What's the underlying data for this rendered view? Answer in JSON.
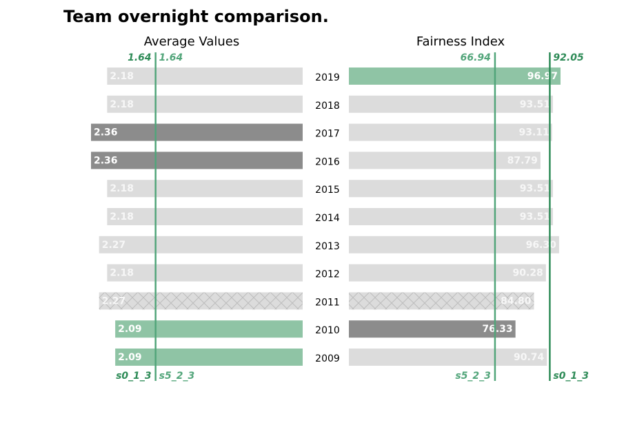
{
  "chart_data": {
    "title": "Team overnight comparison.",
    "type": "bar",
    "categories": [
      "2019",
      "2018",
      "2017",
      "2016",
      "2015",
      "2014",
      "2013",
      "2012",
      "2011",
      "2010",
      "2009"
    ],
    "panels": [
      {
        "title": "Average Values",
        "orientation": "leftward",
        "xlim": [
          0,
          2.36
        ],
        "values": [
          2.18,
          2.18,
          2.36,
          2.36,
          2.18,
          2.18,
          2.27,
          2.18,
          2.27,
          2.09,
          2.09
        ],
        "labels": [
          "2.18",
          "2.18",
          "2.36",
          "2.36",
          "2.18",
          "2.18",
          "2.27",
          "2.18",
          "2.27",
          "2.09",
          "2.09"
        ],
        "reference_lines": [
          {
            "name": "s0_1_3",
            "value": 1.64,
            "value_label": "1.64",
            "color": "#2e8b57"
          },
          {
            "name": "s5_2_3",
            "value": 1.64,
            "value_label": "1.64",
            "color": "#52a57a"
          }
        ]
      },
      {
        "title": "Fairness Index",
        "orientation": "rightward",
        "xlim": [
          0,
          100
        ],
        "values": [
          96.97,
          93.51,
          93.11,
          87.79,
          93.51,
          93.51,
          96.3,
          90.28,
          84.8,
          76.33,
          90.74
        ],
        "labels": [
          "96.97",
          "93.51",
          "93.11",
          "87.79",
          "93.51",
          "93.51",
          "96.30",
          "90.28",
          "84.80",
          "76.33",
          "90.74"
        ],
        "reference_lines": [
          {
            "name": "s5_2_3",
            "value": 66.94,
            "value_label": "66.94",
            "color": "#52a57a"
          },
          {
            "name": "s0_1_3",
            "value": 92.05,
            "value_label": "92.05",
            "color": "#2e8b57"
          }
        ]
      }
    ],
    "styles": {
      "2019": {
        "left": "plain",
        "right": "highlight"
      },
      "2017": {
        "left": "dark",
        "right": "plain"
      },
      "2016": {
        "left": "dark",
        "right": "plain"
      },
      "2011": {
        "left": "hatched",
        "right": "hatched"
      },
      "2010": {
        "left": "highlight",
        "right": "dark"
      },
      "2009": {
        "left": "highlight",
        "right": "plain"
      }
    },
    "colors": {
      "plain": "#dcdcdc",
      "dark": "#8c8c8c",
      "highlight": "#8fc4a5",
      "hatched": "#dcdcdc"
    }
  }
}
